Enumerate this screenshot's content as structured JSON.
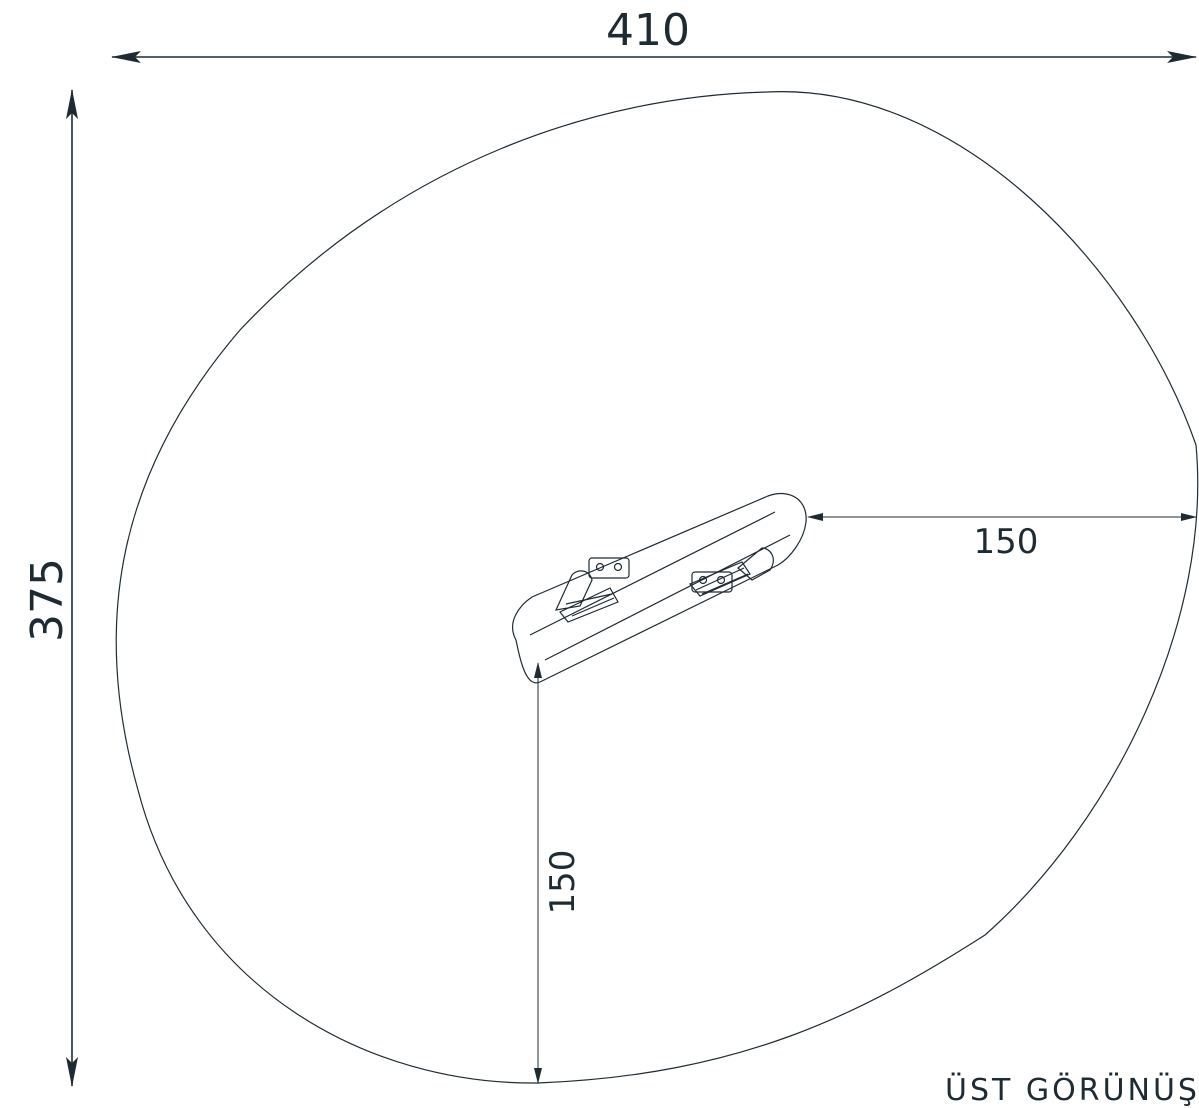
{
  "units": "cm",
  "dimensions": {
    "overall_width": "410",
    "overall_height": "375",
    "right_clearance": "150",
    "bottom_clearance": "150"
  },
  "view_title": "ÜST GÖRÜNÜŞ",
  "colors": {
    "line": "#1f2b33",
    "background": "#ffffff"
  }
}
